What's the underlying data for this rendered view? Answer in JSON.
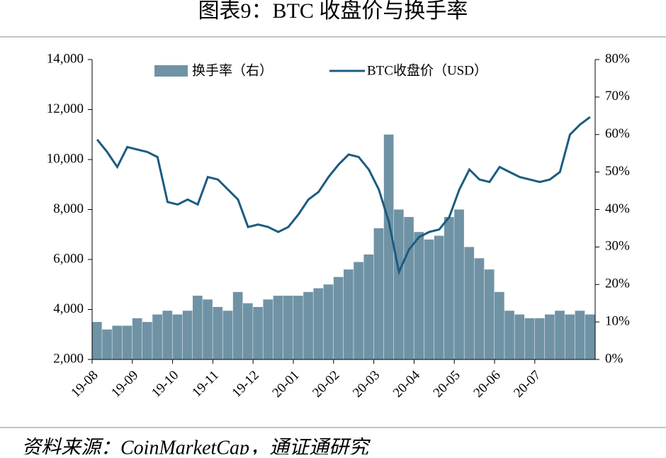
{
  "chart_data": {
    "type": "bar-line",
    "title": "图表9：BTC 收盘价与换手率",
    "source": "资料来源：CoinMarketCap，通证通研究",
    "categories": [
      "19-08",
      null,
      null,
      null,
      "19-09",
      null,
      null,
      null,
      "19-10",
      null,
      null,
      null,
      "19-11",
      null,
      null,
      null,
      "19-12",
      null,
      null,
      null,
      "20-01",
      null,
      null,
      null,
      "20-02",
      null,
      null,
      null,
      "20-03",
      null,
      null,
      null,
      "20-04",
      null,
      null,
      null,
      "20-05",
      null,
      null,
      null,
      "20-06",
      null,
      null,
      null,
      "20-07",
      null,
      null,
      null,
      null,
      null
    ],
    "series": [
      {
        "name": "换手率（右）",
        "color": "#6f93a5",
        "axis": "y2",
        "kind": "bar",
        "values": [
          10,
          8,
          9,
          9,
          11,
          10,
          12,
          13,
          12,
          13,
          17,
          16,
          14,
          13,
          18,
          15,
          14,
          16,
          17,
          17,
          17,
          18,
          19,
          20,
          22,
          24,
          26,
          28,
          35,
          60,
          40,
          38,
          34,
          32,
          33,
          38,
          40,
          30,
          27,
          24,
          18,
          13,
          12,
          11,
          11,
          12,
          13,
          12,
          13,
          12
        ]
      },
      {
        "name": "BTC收盘价（USD）",
        "color": "#1b5c80",
        "axis": "y",
        "kind": "line",
        "values": [
          10800,
          10300,
          9700,
          10500,
          10400,
          10300,
          10100,
          8300,
          8200,
          8400,
          8200,
          9300,
          9200,
          8800,
          8400,
          7300,
          7400,
          7300,
          7100,
          7300,
          7800,
          8400,
          8700,
          9300,
          9800,
          10200,
          10100,
          9600,
          8800,
          7500,
          5500,
          6400,
          6900,
          7100,
          7200,
          7700,
          8800,
          9600,
          9200,
          9100,
          9700,
          9500,
          9300,
          9200,
          9100,
          9200,
          9500,
          11000,
          11400,
          11700
        ]
      }
    ],
    "ylim": [
      2000,
      14000
    ],
    "yticks": [
      {
        "value": 2000,
        "label": "2,000"
      },
      {
        "value": 4000,
        "label": "4,000"
      },
      {
        "value": 6000,
        "label": "6,000"
      },
      {
        "value": 8000,
        "label": "8,000"
      },
      {
        "value": 10000,
        "label": "10,000"
      },
      {
        "value": 12000,
        "label": "12,000"
      },
      {
        "value": 14000,
        "label": "14,000"
      }
    ],
    "y2lim": [
      0,
      80
    ],
    "y2ticks": [
      {
        "value": 0,
        "label": "0%"
      },
      {
        "value": 10,
        "label": "10%"
      },
      {
        "value": 20,
        "label": "20%"
      },
      {
        "value": 30,
        "label": "30%"
      },
      {
        "value": 40,
        "label": "40%"
      },
      {
        "value": 50,
        "label": "50%"
      },
      {
        "value": 60,
        "label": "60%"
      },
      {
        "value": 70,
        "label": "70%"
      },
      {
        "value": 80,
        "label": "80%"
      }
    ]
  }
}
